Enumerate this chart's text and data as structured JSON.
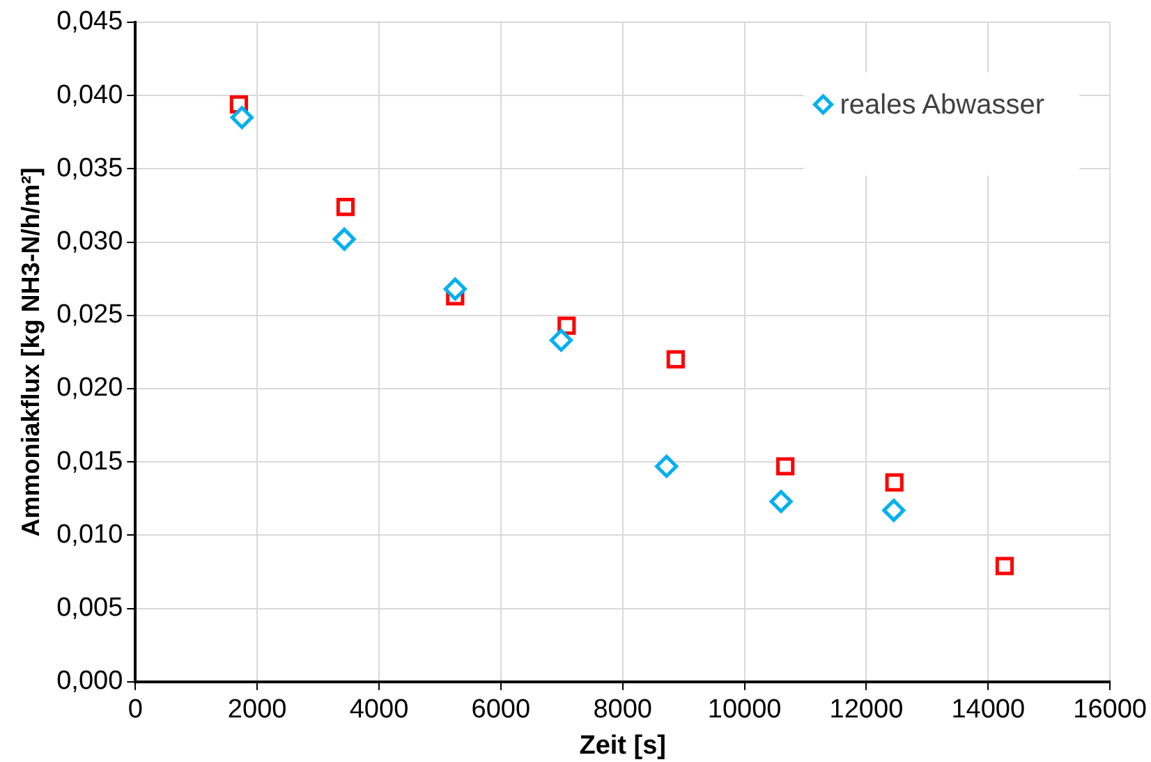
{
  "chart_data": {
    "type": "scatter",
    "xlabel": "Zeit [s]",
    "ylabel": "Ammoniakflux [kg NH3-N/h/m²]",
    "series": [
      {
        "name": "reales Abwasser",
        "color": "#00b0f0",
        "marker": "diamond",
        "x": [
          1750,
          3430,
          5250,
          6990,
          8720,
          10600,
          12450
        ],
        "values": [
          0.0385,
          0.0302,
          0.0268,
          0.0233,
          0.0147,
          0.0123,
          0.0117
        ]
      },
      {
        "color": "#ff0000",
        "marker": "square",
        "x": [
          1700,
          3450,
          5250,
          7080,
          8870,
          10670,
          12460,
          14270
        ],
        "values": [
          0.0394,
          0.0324,
          0.0263,
          0.0243,
          0.022,
          0.0147,
          0.0136,
          0.0079
        ]
      }
    ],
    "xlim": [
      0,
      16000
    ],
    "xticks": [
      0,
      2000,
      4000,
      6000,
      8000,
      10000,
      12000,
      14000,
      16000
    ],
    "ylim": [
      0,
      0.045
    ],
    "yticks": [
      {
        "value": 0,
        "label": "0,000"
      },
      {
        "value": 0.005,
        "label": "0,005"
      },
      {
        "value": 0.01,
        "label": "0,010"
      },
      {
        "value": 0.015,
        "label": "0,015"
      },
      {
        "value": 0.02,
        "label": "0,020"
      },
      {
        "value": 0.025,
        "label": "0,025"
      },
      {
        "value": 0.03,
        "label": "0,030"
      },
      {
        "value": 0.035,
        "label": "0,035"
      },
      {
        "value": 0.04,
        "label": "0,040"
      },
      {
        "value": 0.045,
        "label": "0,045"
      }
    ],
    "grid": true,
    "legend": "top right"
  }
}
